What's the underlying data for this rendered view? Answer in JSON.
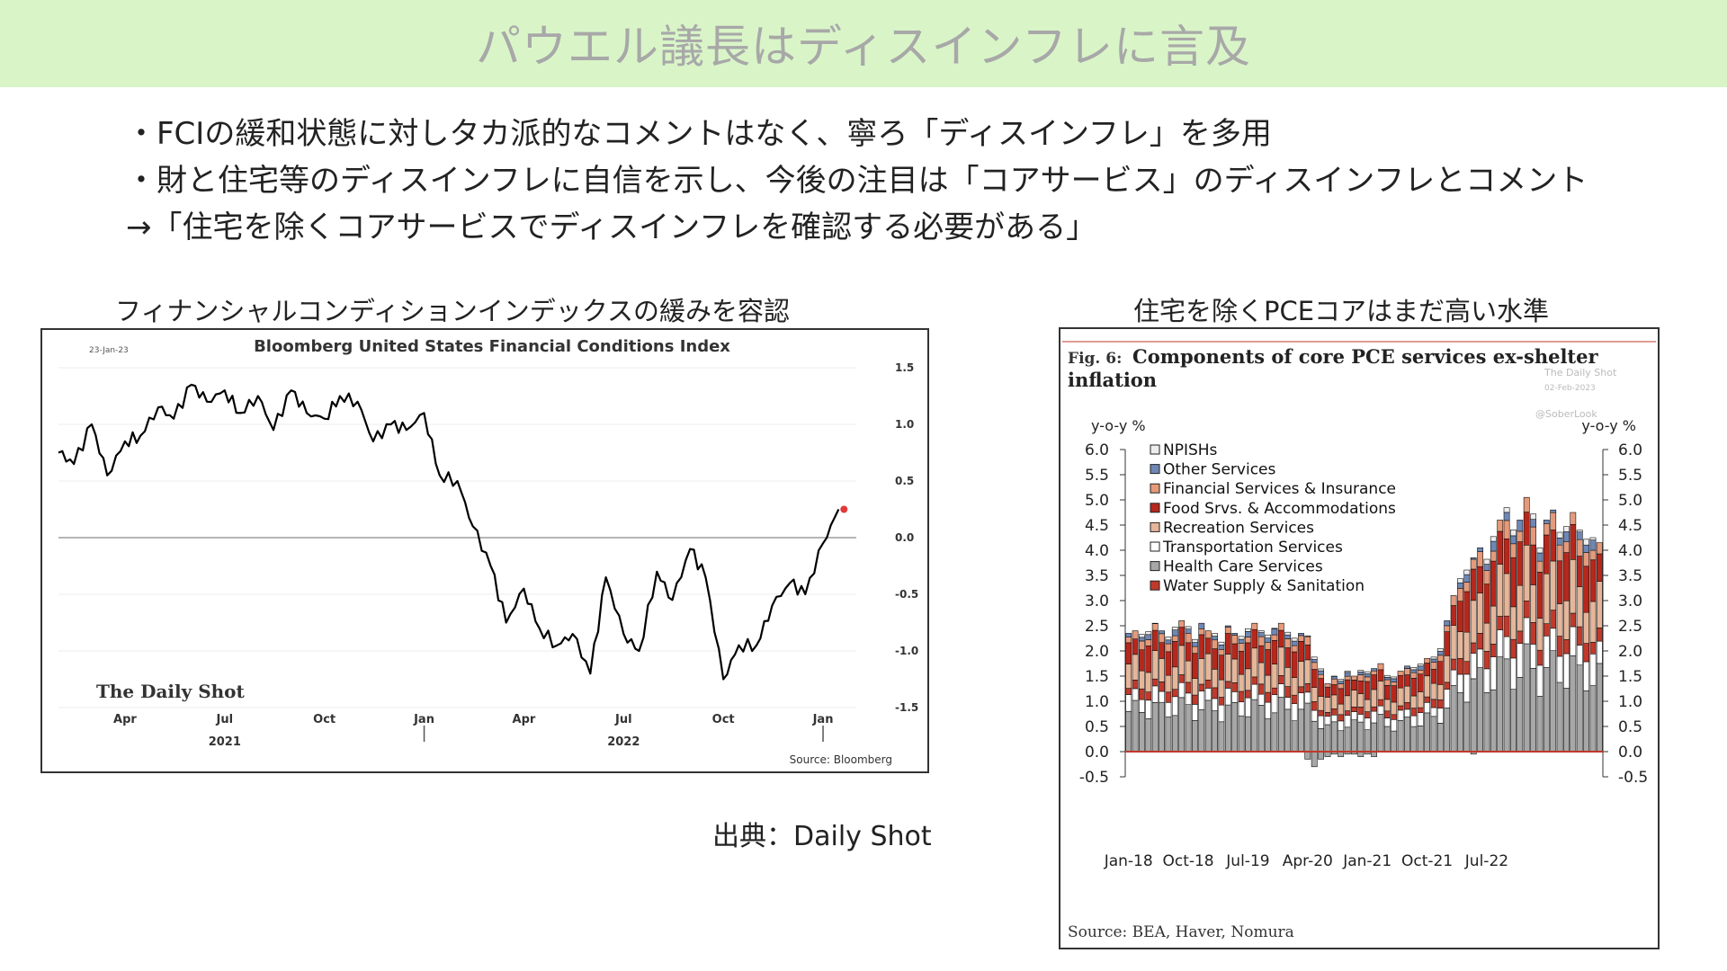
{
  "slide": {
    "title": "パウエル議長はディスインフレに言及",
    "bullets": [
      "・FCIの緩和状態に対しタカ派的なコメントはなく、寧ろ「ディスインフレ」を多用",
      "・財と住宅等のディスインフレに自信を示し、今後の注目は「コアサービス」のディスインフレとコメント",
      "→「住宅を除くコアサービスでディスインフレを確認する必要がある」"
    ],
    "left_caption": "フィナンシャルコンディションインデックスの緩みを容認",
    "right_caption": "住宅を除くPCEコアはまだ高い水準",
    "source_note": "出典：Daily Shot",
    "colors": {
      "banner": "#d9f5c8",
      "title": "#a8a8a8"
    }
  },
  "chart_data": [
    {
      "type": "line",
      "title": "Bloomberg United States Financial Conditions Index",
      "date_stamp": "23-Jan-23",
      "watermark": "The Daily Shot",
      "source": "Source: Bloomberg",
      "x_tick_labels": [
        "Apr",
        "Jul",
        "Oct",
        "Jan",
        "Apr",
        "Jul",
        "Oct",
        "Jan"
      ],
      "x_tick_dates": [
        "2021-04",
        "2021-07",
        "2021-10",
        "2022-01",
        "2022-04",
        "2022-07",
        "2022-10",
        "2023-01"
      ],
      "year_labels": [
        {
          "label": "2021",
          "date": "2021-07"
        },
        {
          "label": "2022",
          "date": "2022-07"
        }
      ],
      "y_ticks": [
        1.5,
        1.0,
        0.5,
        0.0,
        -0.5,
        -1.0,
        -1.5
      ],
      "y_tick_labels": [
        "1.5",
        "1.0",
        "0.5",
        "0.0",
        "-0.5",
        "-1.0",
        "-1.5"
      ],
      "ylim": [
        -1.5,
        1.5
      ],
      "xlim": [
        "2021-02",
        "2023-02"
      ],
      "grid": "horizontal",
      "line_color": "#000000",
      "end_marker_color": "#e23a3a",
      "series": [
        {
          "x": [
            "2021-02",
            "2021-02-15",
            "2021-03",
            "2021-03-15",
            "2021-04",
            "2021-04-15",
            "2021-05",
            "2021-05-15",
            "2021-06",
            "2021-06-15",
            "2021-07",
            "2021-07-15",
            "2021-08",
            "2021-08-15",
            "2021-09",
            "2021-09-15",
            "2021-10",
            "2021-10-15",
            "2021-11",
            "2021-11-15",
            "2021-12",
            "2021-12-15",
            "2022-01",
            "2022-01-15",
            "2022-02",
            "2022-02-15",
            "2022-03",
            "2022-03-15",
            "2022-04",
            "2022-04-15",
            "2022-05",
            "2022-05-15",
            "2022-06",
            "2022-06-15",
            "2022-07",
            "2022-07-15",
            "2022-08",
            "2022-08-15",
            "2022-09",
            "2022-09-15",
            "2022-10",
            "2022-10-15",
            "2022-11",
            "2022-11-15",
            "2022-12",
            "2022-12-15",
            "2023-01",
            "2023-01-15"
          ],
          "y": [
            0.75,
            0.65,
            1.0,
            0.55,
            0.85,
            0.9,
            1.15,
            1.05,
            1.35,
            1.2,
            1.3,
            1.1,
            1.25,
            0.95,
            1.3,
            1.1,
            1.05,
            1.25,
            1.2,
            0.85,
            1.0,
            0.95,
            1.1,
            0.55,
            0.5,
            0.1,
            -0.25,
            -0.75,
            -0.45,
            -0.8,
            -0.95,
            -0.85,
            -1.2,
            -0.35,
            -0.85,
            -1.0,
            -0.3,
            -0.55,
            -0.1,
            -0.35,
            -1.25,
            -0.95,
            -0.95,
            -0.6,
            -0.4,
            -0.5,
            -0.05,
            0.25
          ]
        }
      ]
    },
    {
      "type": "bar",
      "stacked": true,
      "title": "Components of core PCE services ex-shelter inflation",
      "figure_label": "Fig. 6:",
      "watermarks": [
        "The Daily Shot",
        "02-Feb-2023",
        "@SoberLook"
      ],
      "ylabel_left": "y-o-y %",
      "ylabel_right": "y-o-y %",
      "y_ticks": [
        6.0,
        5.5,
        5.0,
        4.5,
        4.0,
        3.5,
        3.0,
        2.5,
        2.0,
        1.5,
        1.0,
        0.5,
        0.0,
        -0.5
      ],
      "y_tick_labels": [
        "6.0",
        "5.5",
        "5.0",
        "4.5",
        "4.0",
        "3.5",
        "3.0",
        "2.5",
        "2.0",
        "1.5",
        "1.0",
        "0.5",
        "0.0",
        "-0.5"
      ],
      "ylim": [
        -0.5,
        6.0
      ],
      "x_tick_labels": [
        "Jan-18",
        "Oct-18",
        "Jul-19",
        "Apr-20",
        "Jan-21",
        "Oct-21",
        "Jul-22"
      ],
      "x_tick_months": [
        "2018-01",
        "2018-10",
        "2019-07",
        "2020-04",
        "2021-01",
        "2021-10",
        "2022-07"
      ],
      "months_start": "2018-01",
      "zero_line_color": "#c0392b",
      "source": "Source: BEA, Haver, Nomura",
      "legend_position": "top-left",
      "series": [
        {
          "name": "NPISHs",
          "color": "#ededed"
        },
        {
          "name": "Other Services",
          "color": "#6f87b5"
        },
        {
          "name": "Financial Services & Insurance",
          "color": "#e59a7b"
        },
        {
          "name": "Food Srvs. & Accommodations",
          "color": "#b7271c"
        },
        {
          "name": "Recreation Services",
          "color": "#e6b69a"
        },
        {
          "name": "Transportation Services",
          "color": "#ffffff"
        },
        {
          "name": "Health Care Services",
          "color": "#a7a7a7"
        },
        {
          "name": "Water Supply & Sanitation",
          "color": "#c0392b"
        }
      ],
      "totals": [
        2.35,
        2.4,
        2.45,
        2.5,
        2.55,
        2.4,
        2.45,
        2.5,
        2.6,
        2.5,
        2.4,
        2.55,
        2.4,
        2.45,
        2.3,
        2.5,
        2.35,
        2.45,
        2.5,
        2.55,
        2.4,
        2.5,
        2.45,
        2.55,
        2.45,
        2.4,
        2.35,
        2.3,
        2.0,
        1.7,
        1.35,
        1.5,
        1.55,
        1.6,
        1.5,
        1.65,
        1.7,
        1.65,
        1.75,
        1.6,
        1.55,
        1.6,
        1.7,
        1.8,
        1.75,
        1.85,
        1.9,
        2.2,
        2.6,
        3.1,
        3.6,
        3.8,
        3.85,
        4.05,
        4.1,
        4.35,
        4.6,
        4.85,
        4.75,
        4.6,
        5.05,
        4.9,
        4.3,
        4.6,
        4.8,
        4.65,
        4.6,
        4.75,
        4.4,
        4.55,
        4.25,
        4.15
      ],
      "negatives": {
        "2020-04": -0.15,
        "2020-05": -0.3,
        "2020-06": -0.15,
        "2020-07": -0.1,
        "2020-08": -0.05,
        "2020-09": -0.1,
        "2020-10": -0.05,
        "2020-11": -0.05,
        "2020-12": -0.1,
        "2021-01": -0.05,
        "2021-02": -0.1,
        "2022-05": -0.05
      }
    }
  ]
}
